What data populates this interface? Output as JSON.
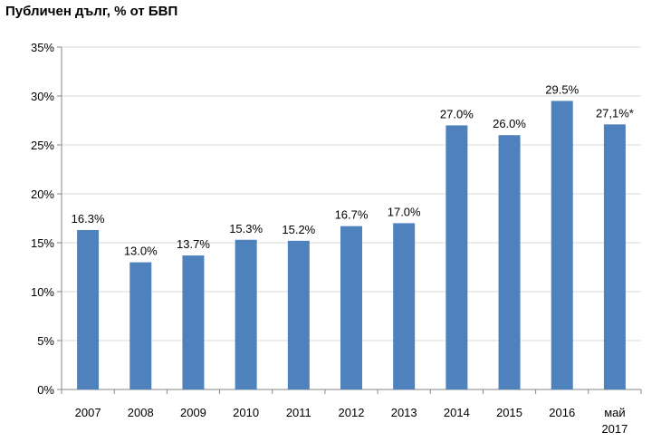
{
  "chart_data": {
    "type": "bar",
    "title": "Публичен дълг, % от БВП",
    "categories": [
      [
        "2007"
      ],
      [
        "2008"
      ],
      [
        "2009"
      ],
      [
        "2010"
      ],
      [
        "2011"
      ],
      [
        "2012"
      ],
      [
        "2013"
      ],
      [
        "2014"
      ],
      [
        "2015"
      ],
      [
        "2016"
      ],
      [
        "май",
        "2017"
      ]
    ],
    "values": [
      16.3,
      13.0,
      13.7,
      15.3,
      15.2,
      16.7,
      17.0,
      27.0,
      26.0,
      29.5,
      27.1
    ],
    "data_labels": [
      "16.3%",
      "13.0%",
      "13.7%",
      "15.3%",
      "15.2%",
      "16.7%",
      "17.0%",
      "27.0%",
      "26.0%",
      "29.5%",
      "27,1%*"
    ],
    "y_ticks": [
      "0%",
      "5%",
      "10%",
      "15%",
      "20%",
      "25%",
      "30%",
      "35%"
    ],
    "ylim": [
      0,
      35
    ],
    "grid": true,
    "bar_color": "#4f81bd",
    "grid_color": "#d9d9d9"
  }
}
